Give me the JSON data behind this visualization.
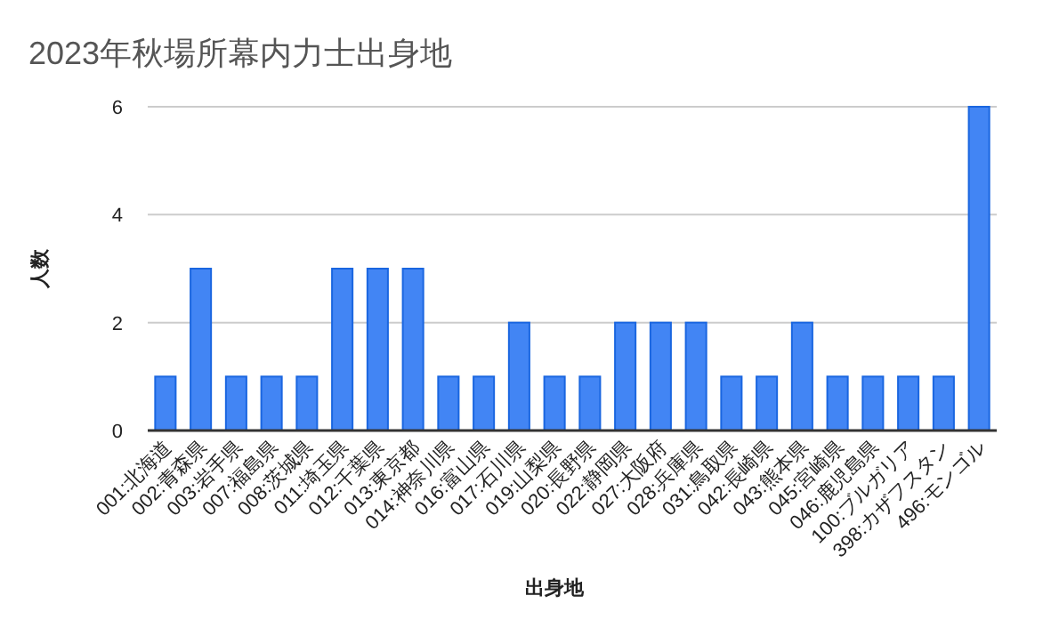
{
  "chart_data": {
    "type": "bar",
    "title": "2023年秋場所幕内力士出身地",
    "xlabel": "出身地",
    "ylabel": "人数",
    "categories": [
      "001:北海道",
      "002:青森県",
      "003:岩手県",
      "007:福島県",
      "008:茨城県",
      "011:埼玉県",
      "012:千葉県",
      "013:東京都",
      "014:神奈川県",
      "016:富山県",
      "017:石川県",
      "019:山梨県",
      "020:長野県",
      "022:静岡県",
      "027:大阪府",
      "028:兵庫県",
      "031:鳥取県",
      "042:長崎県",
      "043:熊本県",
      "045:宮崎県",
      "046:鹿児島県",
      "100:ブルガリア",
      "398:カザフスタン",
      "496:モンゴル"
    ],
    "values": [
      1,
      3,
      1,
      1,
      1,
      3,
      3,
      3,
      1,
      1,
      2,
      1,
      1,
      2,
      2,
      2,
      1,
      1,
      2,
      1,
      1,
      1,
      1,
      6
    ],
    "color": "#4285f4",
    "ylim": [
      0,
      6
    ],
    "yticks": [
      0,
      2,
      4,
      6
    ],
    "grid": "y"
  }
}
